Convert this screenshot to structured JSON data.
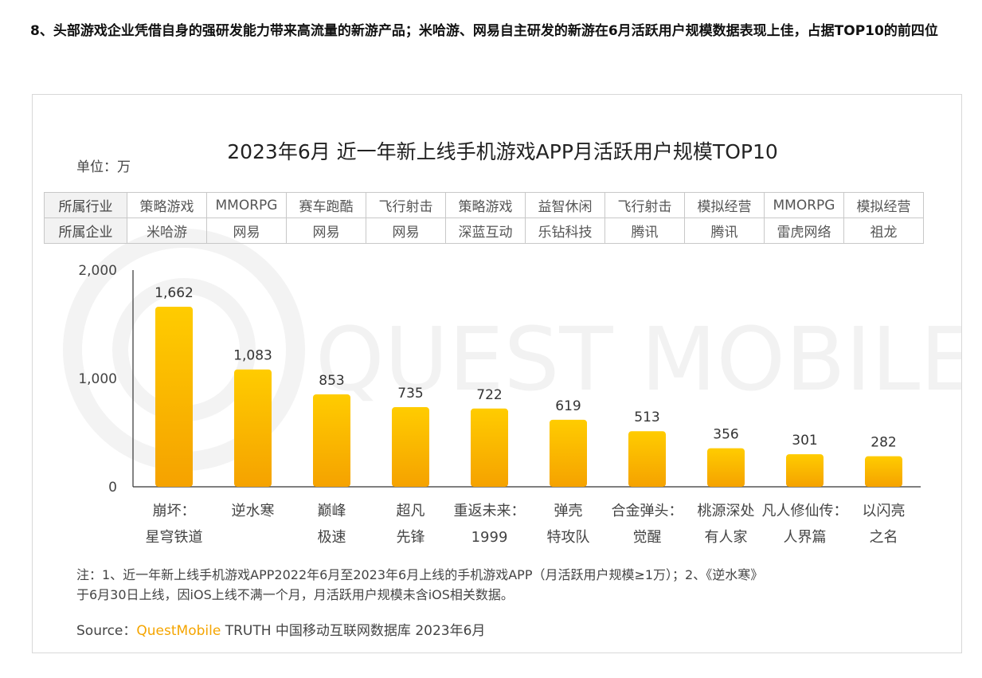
{
  "heading": "8、头部游戏企业凭借自身的强研发能力带来高流量的新游产品；米哈游、网易自主研发的新游在6月活跃用户规模数据表现上佳，占据TOP10的前四位",
  "unit_label": "单位：万",
  "watermark_text": "QUEST MOBILE",
  "table": {
    "industry_label": "所属行业",
    "company_label": "所属企业",
    "industries": [
      "策略游戏",
      "MMORPG",
      "赛车跑酷",
      "飞行射击",
      "策略游戏",
      "益智休闲",
      "飞行射击",
      "模拟经营",
      "MMORPG",
      "模拟经营"
    ],
    "companies": [
      "米哈游",
      "网易",
      "网易",
      "网易",
      "深蓝互动",
      "乐钻科技",
      "腾讯",
      "腾讯",
      "雷虎网络",
      "祖龙"
    ]
  },
  "chart_data": {
    "type": "bar",
    "title": "2023年6月 近一年新上线手机游戏APP月活跃用户规模TOP10",
    "ylabel": "单位：万",
    "ylim": [
      0,
      2000
    ],
    "yticks": [
      "2,000",
      "1,000",
      "0"
    ],
    "yticks_values": [
      2000,
      1000,
      0
    ],
    "categories": [
      [
        "崩坏：",
        "星穹铁道"
      ],
      [
        "逆水寒"
      ],
      [
        "巅峰",
        "极速"
      ],
      [
        "超凡",
        "先锋"
      ],
      [
        "重返未来：",
        "1999"
      ],
      [
        "弹壳",
        "特攻队"
      ],
      [
        "合金弹头：",
        "觉醒"
      ],
      [
        "桃源深处",
        "有人家"
      ],
      [
        "凡人修仙传：",
        "人界篇"
      ],
      [
        "以闪亮",
        "之名"
      ]
    ],
    "values": [
      1662,
      1083,
      853,
      735,
      722,
      619,
      513,
      356,
      301,
      282
    ],
    "value_labels": [
      "1,662",
      "1,083",
      "853",
      "735",
      "722",
      "619",
      "513",
      "356",
      "301",
      "282"
    ],
    "bar_color_top": "#ffcc00",
    "bar_color_bottom": "#f5a200"
  },
  "note": {
    "line1": "注：1、近一年新上线手机游戏APP2022年6月至2023年6月上线的手机游戏APP（月活跃用户规模≥1万）；2、《逆水寒》",
    "line2": "于6月30日上线，因iOS上线不满一个月，月活跃用户规模未含iOS相关数据。"
  },
  "source": {
    "prefix": "Source：",
    "brand": "QuestMobile",
    "rest": " TRUTH 中国移动互联网数据库 2023年6月"
  }
}
